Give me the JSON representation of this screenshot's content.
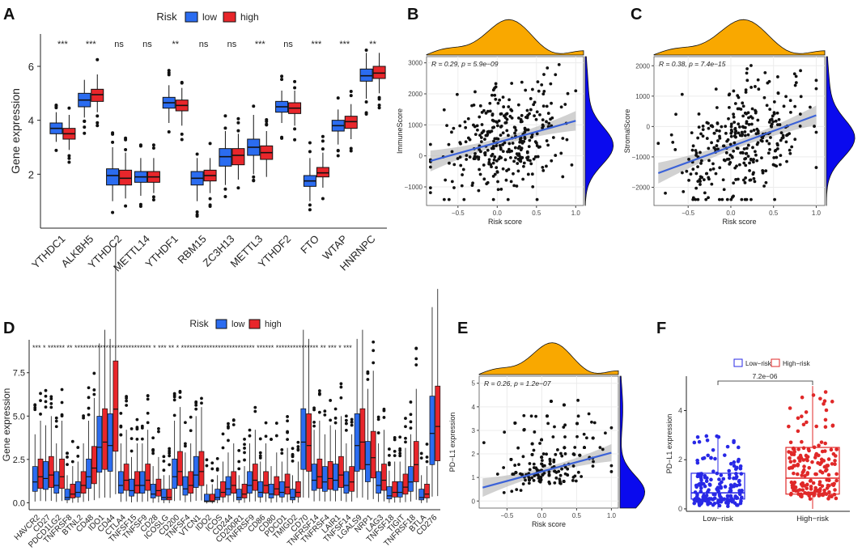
{
  "chart_data": [
    {
      "panel": "A",
      "type": "box",
      "ylabel": "Gene expression",
      "legend_title": "Risk",
      "legend": [
        "low",
        "high"
      ],
      "ylim": [
        0,
        7.2
      ],
      "yticks": [
        2,
        4,
        6
      ],
      "categories": [
        "YTHDC1",
        "ALKBH5",
        "YTHDC2",
        "METTL14",
        "YTHDF1",
        "RBM15",
        "ZC3H13",
        "METTL3",
        "YTHDF2",
        "FTO",
        "WTAP",
        "HNRNPC"
      ],
      "significance": [
        "***",
        "***",
        "ns",
        "ns",
        "**",
        "ns",
        "ns",
        "***",
        "ns",
        "***",
        "***",
        "**"
      ],
      "series": [
        {
          "name": "low",
          "boxes": [
            [
              3.2,
              3.5,
              3.7,
              3.9,
              4.3
            ],
            [
              4.1,
              4.5,
              4.75,
              5.0,
              5.5
            ],
            [
              1.0,
              1.6,
              1.95,
              2.2,
              3.0
            ],
            [
              1.2,
              1.7,
              1.9,
              2.1,
              2.6
            ],
            [
              3.9,
              4.45,
              4.65,
              4.85,
              5.3
            ],
            [
              1.0,
              1.6,
              1.85,
              2.1,
              2.6
            ],
            [
              1.6,
              2.3,
              2.65,
              2.95,
              3.6
            ],
            [
              2.0,
              2.7,
              3.0,
              3.3,
              4.2
            ],
            [
              3.9,
              4.3,
              4.5,
              4.7,
              5.1
            ],
            [
              1.0,
              1.55,
              1.75,
              1.95,
              2.6
            ],
            [
              3.1,
              3.6,
              3.8,
              4.0,
              4.4
            ],
            [
              4.8,
              5.45,
              5.65,
              5.9,
              6.5
            ]
          ]
        },
        {
          "name": "high",
          "boxes": [
            [
              2.9,
              3.3,
              3.5,
              3.7,
              4.2
            ],
            [
              4.3,
              4.7,
              4.95,
              5.15,
              5.7
            ],
            [
              1.1,
              1.6,
              1.85,
              2.15,
              2.8
            ],
            [
              1.3,
              1.7,
              1.9,
              2.1,
              2.6
            ],
            [
              3.8,
              4.35,
              4.55,
              4.75,
              5.2
            ],
            [
              1.3,
              1.75,
              1.95,
              2.15,
              2.6
            ],
            [
              1.8,
              2.35,
              2.7,
              2.95,
              3.5
            ],
            [
              1.9,
              2.55,
              2.8,
              3.05,
              3.6
            ],
            [
              3.8,
              4.25,
              4.45,
              4.65,
              5.1
            ],
            [
              1.5,
              1.9,
              2.05,
              2.25,
              2.8
            ],
            [
              3.3,
              3.7,
              3.95,
              4.15,
              4.6
            ],
            [
              5.0,
              5.55,
              5.75,
              6.0,
              6.5
            ]
          ]
        }
      ]
    },
    {
      "panel": "B",
      "type": "scatter",
      "ylabel": "ImmuneScore",
      "xlabel": "Risk score",
      "annotation": "R = 0.29, p = 5.9e−09",
      "xlim": [
        -0.9,
        1.1
      ],
      "ylim": [
        -1600,
        3200
      ],
      "xticks": [
        -0.5,
        0.0,
        0.5,
        1.0
      ],
      "xtick_labels": [
        "−0.5",
        "0.0",
        "0.5",
        "1.0"
      ],
      "yticks": [
        -1000,
        0,
        1000,
        2000,
        3000
      ],
      "ytick_labels": [
        "−1000",
        "0",
        "1000",
        "2000",
        "3000"
      ],
      "fit": {
        "slope": 700,
        "intercept": 430
      },
      "y_center": 700,
      "y_spread": 1000,
      "x_center": 0.1,
      "x_spread": 0.38,
      "n_points": 330,
      "seed": 11
    },
    {
      "panel": "C",
      "type": "scatter",
      "ylabel": "StromalScore",
      "xlabel": "Risk score",
      "annotation": "R = 0.38, p = 7.4e−15",
      "xlim": [
        -0.9,
        1.1
      ],
      "ylim": [
        -2600,
        2300
      ],
      "xticks": [
        -0.5,
        0.0,
        0.5,
        1.0
      ],
      "xtick_labels": [
        "−0.5",
        "0.0",
        "0.5",
        "1.0"
      ],
      "yticks": [
        -2000,
        -1000,
        0,
        1000,
        2000
      ],
      "ytick_labels": [
        "−2000",
        "−1000",
        "0",
        "1000",
        "2000"
      ],
      "fit": {
        "slope": 1030,
        "intercept": -660
      },
      "y_center": -400,
      "y_spread": 1050,
      "x_center": 0.15,
      "x_spread": 0.38,
      "n_points": 330,
      "seed": 23
    },
    {
      "panel": "D",
      "type": "box",
      "ylabel": "Gene expression",
      "legend_title": "Risk",
      "legend": [
        "low",
        "high"
      ],
      "ylim": [
        -0.4,
        9.4
      ],
      "yticks": [
        0.0,
        2.5,
        5.0,
        7.5
      ],
      "ytick_labels": [
        "0.0",
        "2.5",
        "5.0",
        "7.5"
      ],
      "categories": [
        "HAVCR2",
        "CD27",
        "PDCD1LG2",
        "TNFRSF8",
        "BTNL2",
        "CD48",
        "IDO1",
        "CD44",
        "CTLA4",
        "TNFSF15",
        "TNFSF9",
        "CD28",
        "ICOSLG",
        "CD200",
        "TNFSF4",
        "VTCN1",
        "IDO2",
        "ICOS",
        "CD244",
        "CD200R1",
        "TNFRSF9",
        "CD86",
        "CD80",
        "PDCD1",
        "TMIGD2",
        "CD70",
        "TNFRSF14",
        "TNFRSF4",
        "LAIR1",
        "TNFSF14",
        "LGALS9",
        "NRP1",
        "LAG3",
        "TNFSF18",
        "TIGIT",
        "TNFRSF18",
        "BTLA",
        "CD276"
      ],
      "significance_text": "*** * ****** ** *************************** * *** ** * ************************** ****** *************** ** *** * ***",
      "medians_low": [
        1.2,
        1.4,
        1.0,
        0.3,
        0.6,
        1.5,
        3.2,
        3.3,
        1.0,
        0.7,
        1.0,
        0.5,
        0.3,
        1.5,
        0.8,
        1.6,
        0.1,
        0.3,
        0.8,
        0.3,
        1.0,
        0.6,
        0.5,
        0.6,
        0.3,
        3.5,
        1.3,
        1.2,
        1.3,
        1.0,
        3.3,
        2.2,
        1.0,
        0.4,
        0.6,
        1.2,
        0.3,
        4.0
      ],
      "medians_high": [
        1.5,
        1.6,
        1.5,
        0.5,
        1.0,
        2.0,
        3.5,
        5.4,
        1.3,
        1.0,
        1.3,
        0.7,
        0.3,
        1.8,
        1.0,
        1.8,
        0.1,
        0.6,
        1.0,
        0.5,
        1.3,
        1.0,
        0.8,
        0.9,
        0.6,
        3.3,
        1.5,
        1.4,
        1.6,
        1.2,
        3.5,
        2.6,
        1.3,
        0.6,
        0.9,
        2.2,
        0.5,
        4.4
      ]
    },
    {
      "panel": "E",
      "type": "scatter",
      "ylabel": "PD−L1 expression",
      "xlabel": "Risk score",
      "annotation": "R = 0.26, p = 1.2e−07",
      "xlim": [
        -0.9,
        1.1
      ],
      "ylim": [
        -0.3,
        5.3
      ],
      "xticks": [
        -0.5,
        0.0,
        0.5,
        1.0
      ],
      "xtick_labels": [
        "−0.5",
        "0.0",
        "0.5",
        "1.0"
      ],
      "yticks": [
        0,
        1,
        2,
        3,
        4,
        5
      ],
      "fit": {
        "slope": 0.8,
        "intercept": 1.25
      },
      "y_center": 1.0,
      "y_spread": 1.3,
      "x_center": 0.1,
      "x_spread": 0.38,
      "n_points": 360,
      "seed": 37
    },
    {
      "panel": "F",
      "type": "box",
      "ylabel": "PD−L1 expression",
      "categories": [
        "Low−risk",
        "High−risk"
      ],
      "legend": [
        "Low−risk",
        "High−risk"
      ],
      "colors": [
        "#2828e6",
        "#e02828"
      ],
      "pvalue": "7.2e−06",
      "ylim": [
        -0.1,
        5.4
      ],
      "yticks": [
        0,
        2,
        4
      ],
      "boxes": [
        [
          0.0,
          0.4,
          0.65,
          1.45,
          3.0
        ],
        [
          0.0,
          0.6,
          1.25,
          2.5,
          5.0
        ]
      ],
      "n_points": 180
    }
  ],
  "panel_labels": [
    "A",
    "B",
    "C",
    "D",
    "E",
    "F"
  ],
  "colors": {
    "low": "#2b6cf0",
    "high": "#e8262b",
    "density_top": "#f9a800",
    "density_side": "#0a0aee",
    "fit": "#3b62d8",
    "panel_bg": "#ebebeb"
  }
}
